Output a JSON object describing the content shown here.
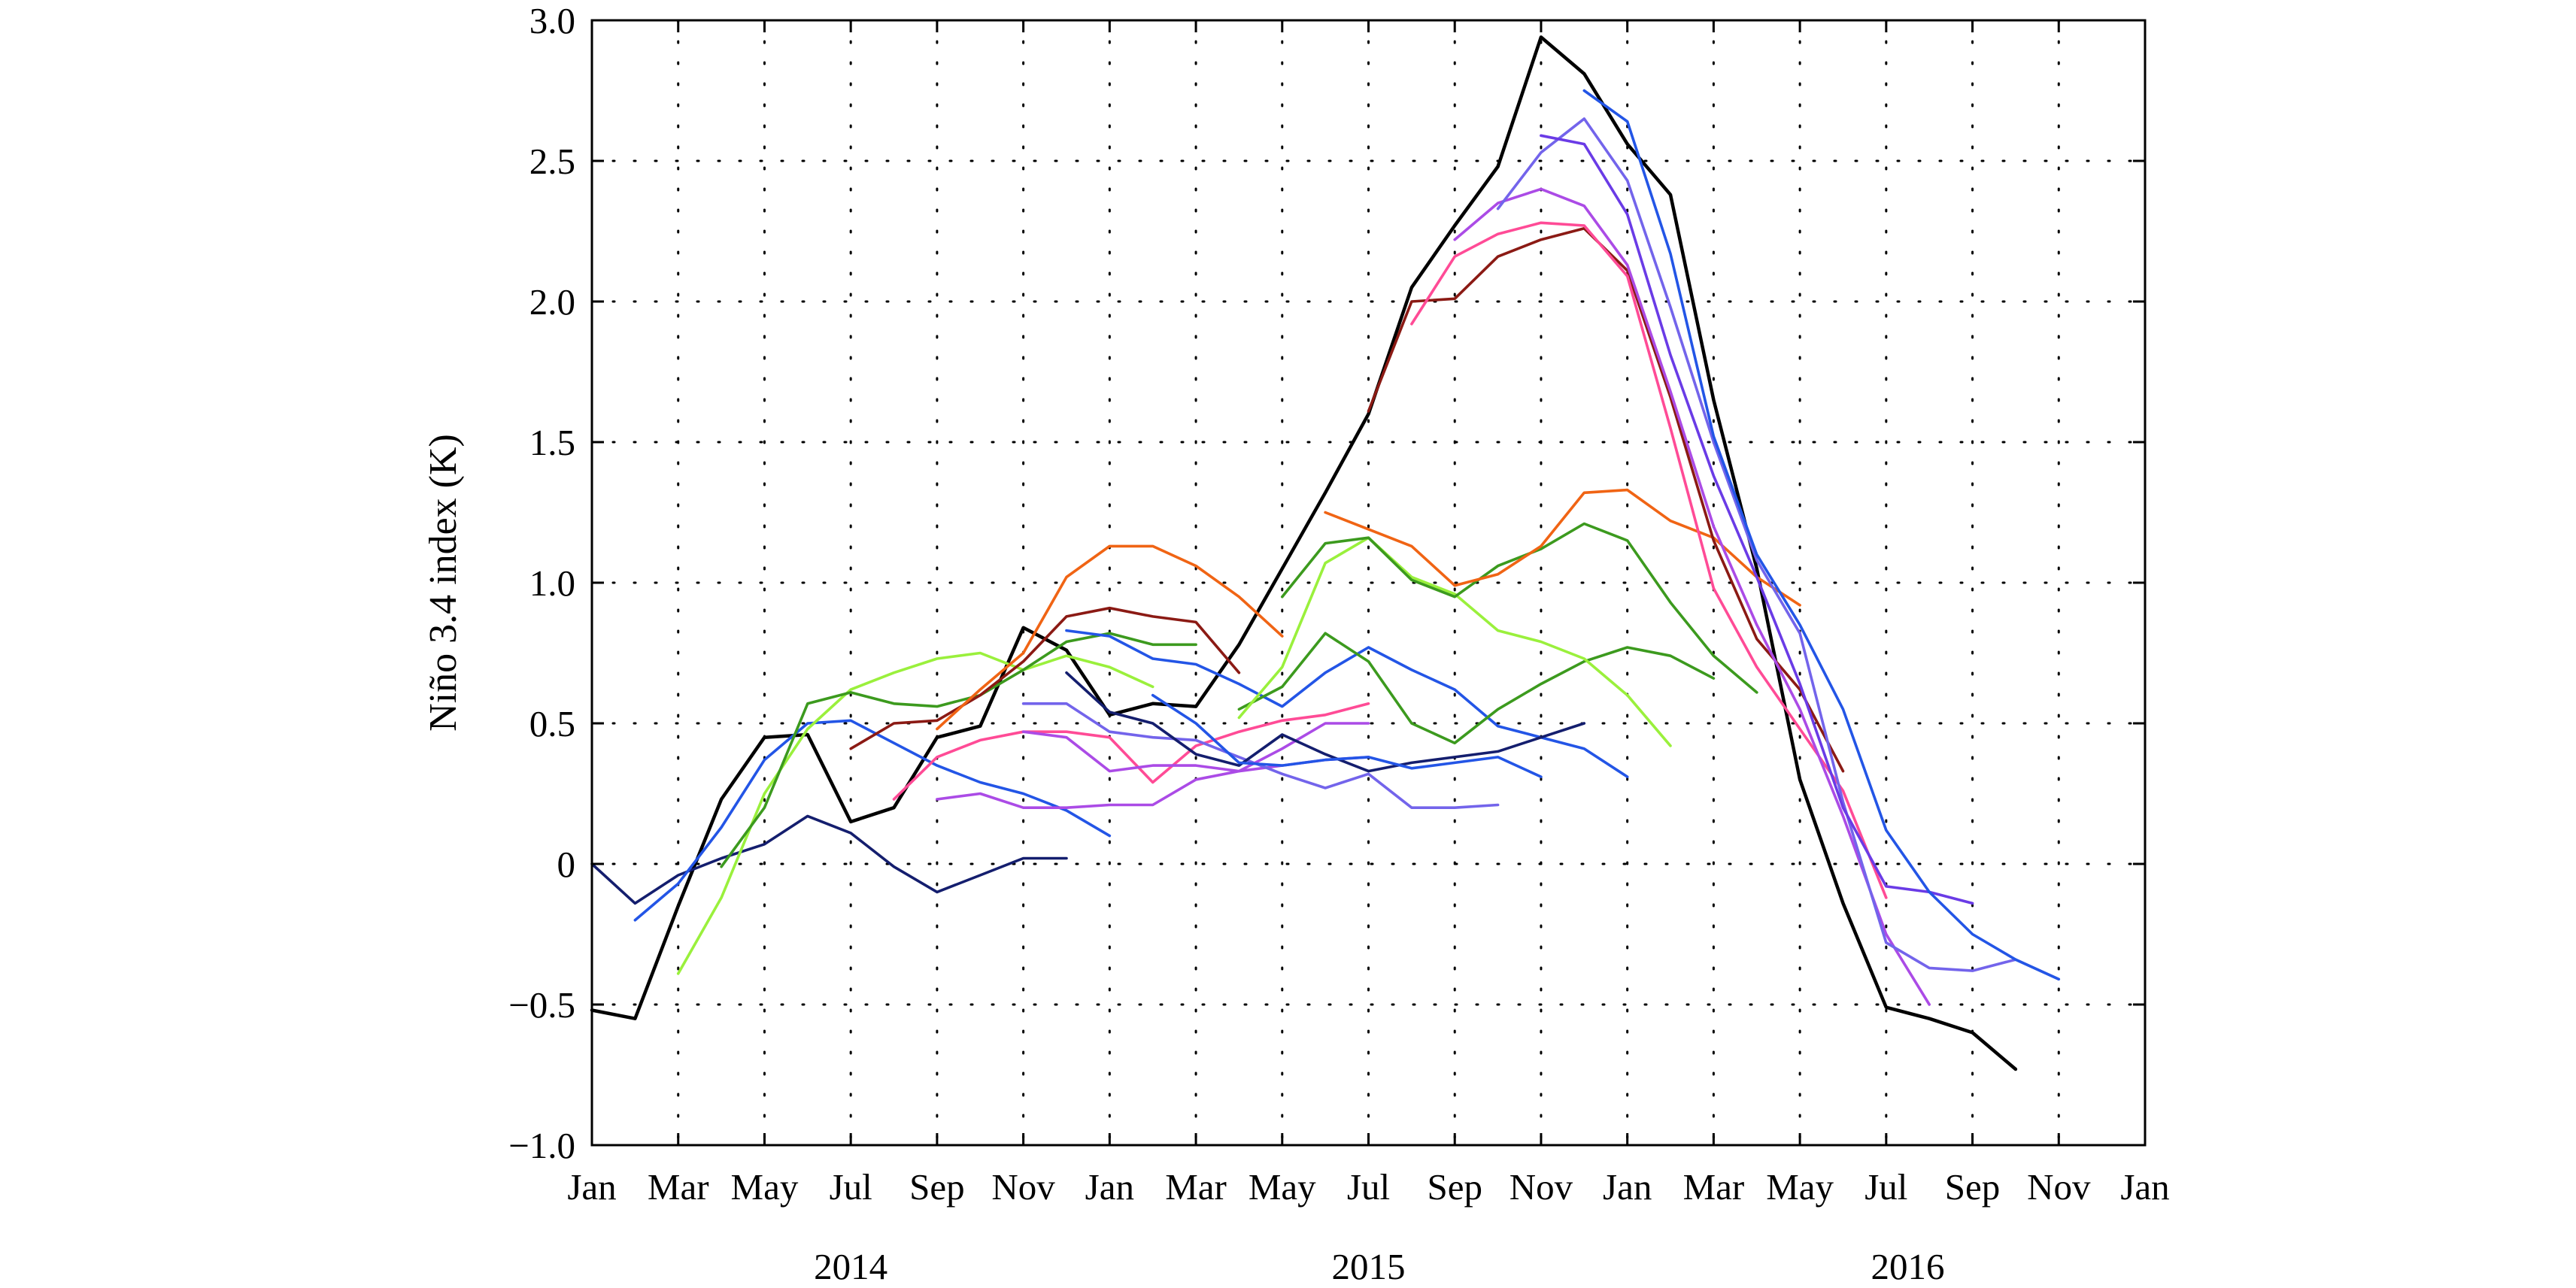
{
  "chart_data": {
    "type": "line",
    "title": "",
    "xlabel": "",
    "ylabel": "Niño 3.4 index (K)",
    "ylim": [
      -1.0,
      3.0
    ],
    "yticks": [
      -1.0,
      -0.5,
      0,
      0.5,
      1.0,
      1.5,
      2.0,
      2.5,
      3.0
    ],
    "ytick_labels": [
      "−1.0",
      "−0.5",
      "0",
      "0.5",
      "1.0",
      "1.5",
      "2.0",
      "2.5",
      "3.0"
    ],
    "x_unit": "month index (0 = Jan 2014)",
    "xlim": [
      0,
      36
    ],
    "xtick_labels": [
      "Jan",
      "Mar",
      "May",
      "Jul",
      "Sep",
      "Nov",
      "Jan",
      "Mar",
      "May",
      "Jul",
      "Sep",
      "Nov",
      "Jan",
      "Mar",
      "May",
      "Jul",
      "Sep",
      "Nov",
      "Jan"
    ],
    "year_labels": [
      {
        "label": "2014",
        "month": 6
      },
      {
        "label": "2015",
        "month": 18
      },
      {
        "label": "2016",
        "month": 30.5
      }
    ],
    "grid": "dotted",
    "legend": "none",
    "series": [
      {
        "name": "observed",
        "color": "#000000",
        "x": [
          0,
          1,
          2,
          3,
          4,
          5,
          6,
          7,
          8,
          9,
          10,
          11,
          12,
          13,
          14,
          15,
          16,
          17,
          18,
          19,
          20,
          21,
          22,
          23,
          24,
          25,
          26,
          27,
          28,
          29,
          30,
          31,
          32,
          33,
          34
        ],
        "values": [
          -0.52,
          -0.55,
          -0.15,
          0.23,
          0.45,
          0.46,
          0.15,
          0.2,
          0.45,
          0.49,
          0.84,
          0.76,
          0.53,
          0.57,
          0.56,
          0.78,
          1.05,
          1.32,
          1.6,
          2.05,
          2.27,
          2.48,
          2.94,
          2.81,
          2.56,
          2.38,
          1.65,
          1.05,
          0.3,
          -0.14,
          -0.51,
          -0.55,
          -0.6,
          -0.73,
          null
        ]
      },
      {
        "name": "f01",
        "color": "#141e6e",
        "x": [
          0,
          1,
          2,
          3,
          4,
          5,
          6,
          7,
          8,
          9,
          10,
          11
        ],
        "values": [
          0.0,
          -0.14,
          -0.04,
          0.02,
          0.07,
          0.17,
          0.11,
          -0.01,
          -0.1,
          -0.04,
          0.02,
          0.02
        ]
      },
      {
        "name": "f02",
        "color": "#2355e6",
        "x": [
          1,
          2,
          3,
          4,
          5,
          6,
          7,
          8,
          9,
          10,
          11,
          12
        ],
        "values": [
          -0.2,
          -0.07,
          0.13,
          0.37,
          0.5,
          0.51,
          0.43,
          0.35,
          0.29,
          0.25,
          0.19,
          0.1
        ]
      },
      {
        "name": "f03",
        "color": "#9af03c",
        "x": [
          2,
          3,
          4,
          5,
          6,
          7,
          8,
          9,
          10,
          11,
          12,
          13
        ],
        "values": [
          -0.39,
          -0.12,
          0.25,
          0.48,
          0.62,
          0.68,
          0.73,
          0.75,
          0.69,
          0.74,
          0.7,
          0.63
        ]
      },
      {
        "name": "f04",
        "color": "#3c9a1e",
        "x": [
          3,
          4,
          5,
          6,
          7,
          8,
          9,
          10,
          11,
          12,
          13,
          14,
          15
        ],
        "values": [
          -0.01,
          0.2,
          0.57,
          0.61,
          0.57,
          0.56,
          0.6,
          0.69,
          0.79,
          0.82,
          0.78,
          0.78,
          null
        ]
      },
      {
        "name": "f05",
        "color": "#8b1a14",
        "x": [
          6,
          7,
          8,
          9,
          10,
          11,
          12,
          13,
          14,
          15
        ],
        "values": [
          0.41,
          0.5,
          0.51,
          0.6,
          0.72,
          0.88,
          0.91,
          0.88,
          0.86,
          0.68
        ]
      },
      {
        "name": "f06",
        "color": "#ff4b96",
        "x": [
          7,
          8,
          9,
          10,
          11,
          12,
          13,
          14,
          15,
          16,
          17,
          18
        ],
        "values": [
          0.23,
          0.38,
          0.44,
          0.47,
          0.47,
          0.45,
          0.29,
          0.42,
          0.47,
          0.51,
          0.53,
          0.57
        ]
      },
      {
        "name": "f07",
        "color": "#f06414",
        "x": [
          8,
          9,
          10,
          11,
          12,
          13,
          14,
          15,
          16
        ],
        "values": [
          0.48,
          0.62,
          0.75,
          1.02,
          1.13,
          1.13,
          1.06,
          0.95,
          0.81
        ]
      },
      {
        "name": "f08",
        "color": "#ab4be6",
        "x": [
          8,
          9,
          10,
          11,
          12,
          13,
          14,
          15,
          16,
          17,
          18
        ],
        "values": [
          0.23,
          0.25,
          0.2,
          0.2,
          0.21,
          0.21,
          0.3,
          0.33,
          0.35,
          0.37,
          0.38
        ]
      },
      {
        "name": "f09",
        "color": "#7364eb",
        "x": [
          10,
          11,
          12,
          13,
          14,
          15,
          16,
          17,
          18,
          19,
          20,
          21
        ],
        "values": [
          0.57,
          0.57,
          0.47,
          0.45,
          0.44,
          0.38,
          0.32,
          0.27,
          0.32,
          0.2,
          0.2,
          0.21
        ]
      },
      {
        "name": "f10",
        "color": "#ab4be6",
        "x": [
          10,
          11,
          12,
          13,
          14,
          15,
          16,
          17,
          18
        ],
        "values": [
          0.47,
          0.45,
          0.33,
          0.35,
          0.35,
          0.33,
          0.41,
          0.5,
          0.5
        ]
      },
      {
        "name": "f11",
        "color": "#2355e6",
        "x": [
          11,
          12,
          13,
          14,
          15,
          16,
          17,
          18,
          19,
          20,
          21,
          22,
          23,
          24
        ],
        "values": [
          0.83,
          0.81,
          0.73,
          0.71,
          0.64,
          0.56,
          0.68,
          0.77,
          0.69,
          0.62,
          0.49,
          0.45,
          0.41,
          0.31
        ]
      },
      {
        "name": "f12",
        "color": "#141e6e",
        "x": [
          11,
          12,
          13,
          14,
          15,
          16,
          17,
          18,
          19,
          20,
          21,
          22,
          23
        ],
        "values": [
          0.68,
          0.54,
          0.5,
          0.39,
          0.35,
          0.46,
          0.39,
          0.33,
          0.36,
          0.38,
          0.4,
          0.45,
          0.5
        ]
      },
      {
        "name": "f13",
        "color": "#2355e6",
        "x": [
          13,
          14,
          15,
          16,
          17,
          18,
          19,
          20,
          21,
          22
        ],
        "values": [
          0.6,
          0.5,
          0.36,
          0.35,
          0.37,
          0.38,
          0.34,
          0.36,
          0.38,
          0.31
        ]
      },
      {
        "name": "f14",
        "color": "#3c9a1e",
        "x": [
          15,
          16,
          17,
          18,
          19,
          20,
          21,
          22,
          23,
          24,
          25,
          26,
          27
        ],
        "values": [
          0.55,
          0.63,
          0.82,
          0.72,
          0.5,
          0.43,
          0.55,
          0.64,
          0.72,
          0.77,
          0.74,
          0.66,
          null
        ]
      },
      {
        "name": "f15",
        "color": "#9af03c",
        "x": [
          15,
          16,
          17,
          18,
          19,
          20,
          21,
          22,
          23,
          24,
          25
        ],
        "values": [
          0.52,
          0.7,
          1.07,
          1.16,
          1.02,
          0.96,
          0.83,
          0.79,
          0.73,
          0.6,
          0.42
        ]
      },
      {
        "name": "f16",
        "color": "#3c9a1e",
        "x": [
          16,
          17,
          18,
          19,
          20,
          21,
          22,
          23,
          24,
          25,
          26,
          27
        ],
        "values": [
          0.95,
          1.14,
          1.16,
          1.01,
          0.95,
          1.06,
          1.12,
          1.21,
          1.15,
          0.93,
          0.74,
          0.61
        ]
      },
      {
        "name": "f17",
        "color": "#f06414",
        "x": [
          17,
          18,
          19,
          20,
          21,
          22,
          23,
          24,
          25,
          26,
          27,
          28
        ],
        "values": [
          1.25,
          1.19,
          1.13,
          0.99,
          1.03,
          1.13,
          1.32,
          1.33,
          1.22,
          1.16,
          1.02,
          0.92
        ]
      },
      {
        "name": "f18",
        "color": "#8b1a14",
        "x": [
          18,
          19,
          20,
          21,
          22,
          23,
          24,
          25,
          26,
          27,
          28,
          29
        ],
        "values": [
          1.61,
          2.0,
          2.01,
          2.16,
          2.22,
          2.26,
          2.11,
          1.66,
          1.15,
          0.8,
          0.62,
          0.33
        ]
      },
      {
        "name": "f19",
        "color": "#ff4b96",
        "x": [
          19,
          20,
          21,
          22,
          23,
          24,
          25,
          26,
          27,
          28,
          29,
          30
        ],
        "values": [
          1.92,
          2.16,
          2.24,
          2.28,
          2.27,
          2.09,
          1.55,
          0.98,
          0.7,
          0.48,
          0.26,
          -0.12
        ]
      },
      {
        "name": "f20",
        "color": "#ab4be6",
        "x": [
          20,
          21,
          22,
          23,
          24,
          25,
          26,
          27,
          28,
          29,
          30,
          31
        ],
        "values": [
          2.22,
          2.35,
          2.4,
          2.34,
          2.13,
          1.68,
          1.2,
          0.85,
          0.55,
          0.17,
          -0.25,
          -0.5
        ]
      },
      {
        "name": "f21",
        "color": "#7364eb",
        "x": [
          21,
          22,
          23,
          24,
          25,
          26,
          27,
          28,
          29,
          30,
          31,
          32,
          33
        ],
        "values": [
          2.33,
          2.53,
          2.65,
          2.43,
          1.98,
          1.5,
          1.08,
          0.82,
          0.22,
          -0.28,
          -0.37,
          -0.38,
          -0.34
        ]
      },
      {
        "name": "f22",
        "color": "#6a3be6",
        "x": [
          22,
          23,
          24,
          25,
          26,
          27,
          28,
          29,
          30,
          31,
          32
        ],
        "values": [
          2.59,
          2.56,
          2.31,
          1.81,
          1.38,
          1.02,
          0.64,
          0.2,
          -0.08,
          -0.1,
          -0.14
        ]
      },
      {
        "name": "f23",
        "color": "#2355e6",
        "x": [
          23,
          24,
          25,
          26,
          27,
          28,
          29,
          30,
          31,
          32,
          33,
          34
        ],
        "values": [
          2.75,
          2.64,
          2.17,
          1.52,
          1.1,
          0.85,
          0.55,
          0.12,
          -0.1,
          -0.25,
          -0.34,
          -0.41
        ]
      }
    ]
  }
}
